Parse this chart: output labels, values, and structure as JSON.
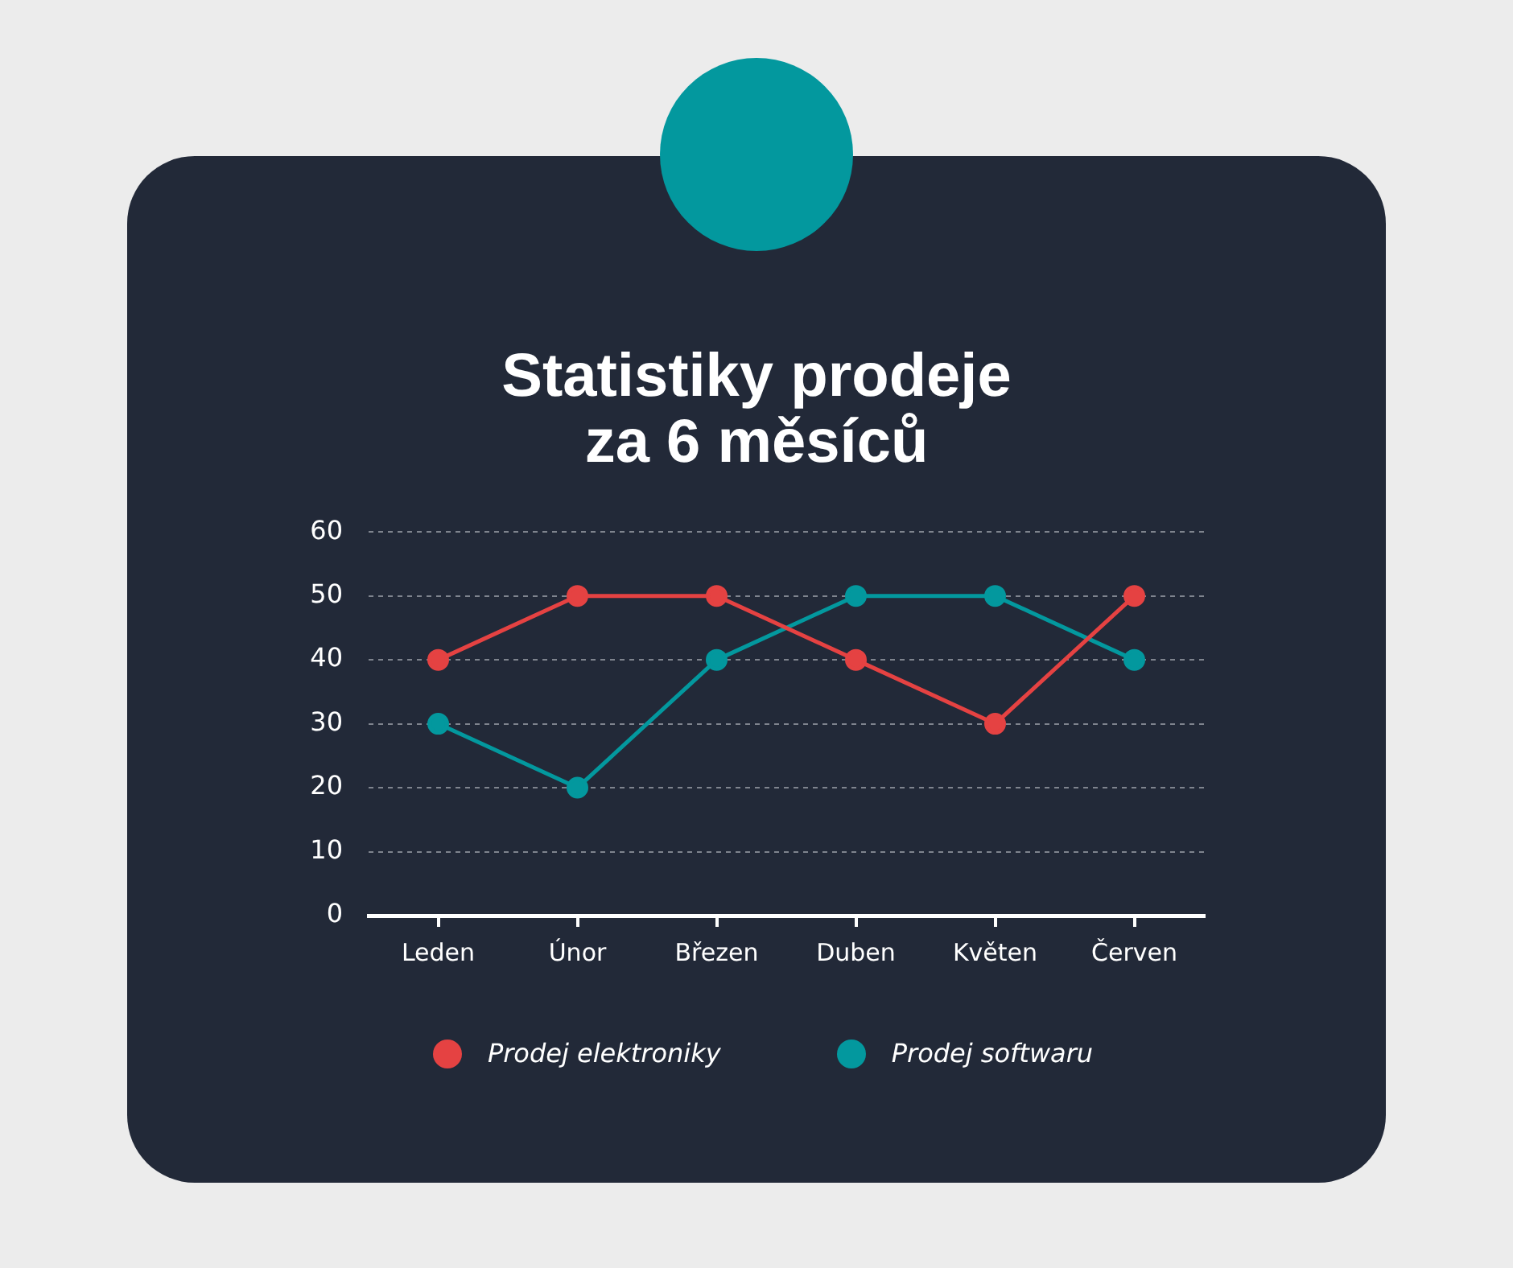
{
  "chart_data": {
    "type": "line",
    "title": "Statistiky prodeje za 6 měsíců",
    "categories": [
      "Leden",
      "Únor",
      "Březen",
      "Duben",
      "Květen",
      "Červen"
    ],
    "series": [
      {
        "name": "Prodej elektroniky",
        "color": "#e54242",
        "values": [
          40,
          50,
          50,
          40,
          30,
          50
        ]
      },
      {
        "name": "Prodej softwaru",
        "color": "#03989e",
        "values": [
          30,
          20,
          40,
          50,
          50,
          40
        ]
      }
    ],
    "ylim": [
      0,
      60
    ],
    "yticks": [
      0,
      10,
      20,
      30,
      40,
      50,
      60
    ],
    "grid": "y",
    "legend": "bottom",
    "marker": "circle",
    "line_style": "solid"
  }
}
